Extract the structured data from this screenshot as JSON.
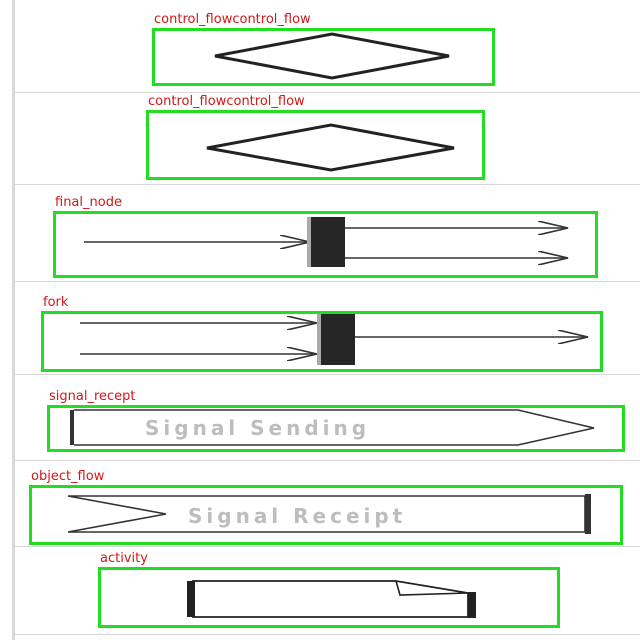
{
  "annotations": [
    {
      "id": "a1",
      "label": "control_flowcontrol_flow"
    },
    {
      "id": "a2",
      "label": "control_flowcontrol_flow"
    },
    {
      "id": "a3",
      "label": "final_node"
    },
    {
      "id": "a4",
      "label": "fork"
    },
    {
      "id": "a5",
      "label": "signal_recept"
    },
    {
      "id": "a6",
      "label": "object_flow"
    },
    {
      "id": "a7",
      "label": "activity"
    }
  ],
  "shapes": {
    "signal_sending_text": "Signal Sending",
    "signal_receipt_text": "Signal Receipt"
  },
  "colors": {
    "bbox": "#22dd22",
    "label": "#d01818",
    "stroke": "#222222",
    "bar": "#262626",
    "shape_text": "#bdbdbd"
  }
}
